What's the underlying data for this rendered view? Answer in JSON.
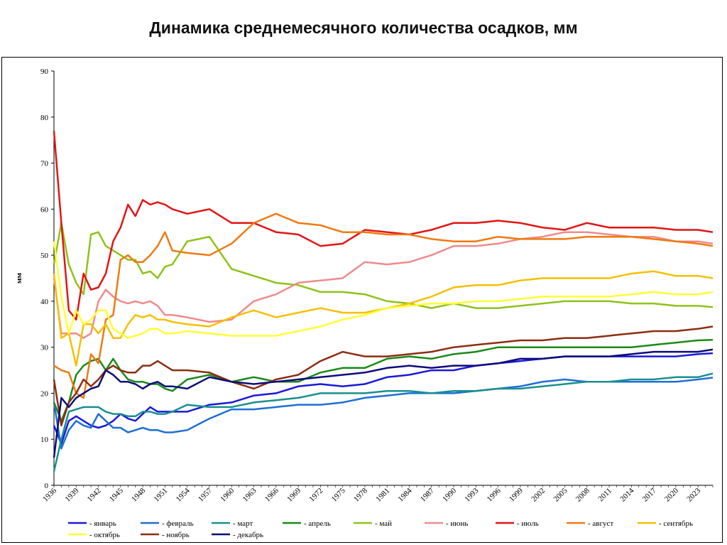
{
  "chart_data": {
    "type": "line",
    "title": "Динамика среднемесячного количества осадков, мм",
    "xlabel": "",
    "ylabel": "мм",
    "ylim": [
      0,
      90
    ],
    "yticks": [
      0,
      10,
      20,
      30,
      40,
      50,
      60,
      70,
      80,
      90
    ],
    "xlim": [
      1936,
      2025
    ],
    "xticks": [
      "1936",
      "1939",
      "1942",
      "1945",
      "1948",
      "1951",
      "1954",
      "1957",
      "1960",
      "1963",
      "1966",
      "1969",
      "1972",
      "1975",
      "1978",
      "1981",
      "1984",
      "1987",
      "1990",
      "1993",
      "1996",
      "1999",
      "2002",
      "2005",
      "2008",
      "2011",
      "2014",
      "2017",
      "2020",
      "2023"
    ],
    "grid": false,
    "legend": "bottom",
    "sample_years": [
      1936,
      1937,
      1938,
      1939,
      1940,
      1941,
      1942,
      1943,
      1944,
      1945,
      1946,
      1947,
      1948,
      1949,
      1950,
      1951,
      1952,
      1954,
      1957,
      1960,
      1963,
      1966,
      1969,
      1972,
      1975,
      1978,
      1981,
      1984,
      1987,
      1990,
      1993,
      1996,
      1999,
      2002,
      2005,
      2008,
      2011,
      2014,
      2017,
      2020,
      2023,
      2025
    ],
    "series": [
      {
        "name": "январь",
        "color": "#1a1ad9",
        "values": [
          13,
          9,
          14,
          15,
          14,
          13,
          12.5,
          13,
          14,
          15.5,
          14.5,
          14,
          15.5,
          17,
          16,
          16,
          16,
          16,
          17.5,
          18,
          19.5,
          20,
          21.5,
          22,
          21.5,
          22,
          23.5,
          24,
          25,
          25,
          26,
          26.5,
          27,
          27.5,
          28,
          28,
          28,
          28,
          28,
          28,
          28.5,
          28.7
        ]
      },
      {
        "name": "февраль",
        "color": "#1e6fd6",
        "values": [
          18,
          8,
          12,
          14,
          13,
          12.5,
          15.5,
          14,
          12.5,
          12.5,
          11.5,
          12,
          12.5,
          12,
          12,
          11.5,
          11.5,
          12,
          14.5,
          16.5,
          16.5,
          17,
          17.5,
          17.5,
          18,
          19,
          19.5,
          20,
          20,
          20,
          20.5,
          21,
          21.5,
          22.5,
          23,
          22.5,
          22.5,
          22.5,
          22.5,
          22.5,
          23,
          23.4
        ]
      },
      {
        "name": "март",
        "color": "#1a8f8f",
        "values": [
          3,
          10,
          16,
          16.5,
          17,
          17,
          17,
          16,
          15.5,
          15.5,
          15,
          15,
          16,
          16,
          15.5,
          15.5,
          16,
          17.5,
          17,
          17,
          18,
          18.5,
          19,
          20,
          20,
          20,
          20.5,
          20.5,
          20,
          20.5,
          20.5,
          21,
          21,
          21.5,
          22,
          22.5,
          22.5,
          23,
          23,
          23.5,
          23.5,
          24.3
        ]
      },
      {
        "name": "апрель",
        "color": "#1a8a1a",
        "values": [
          18,
          14,
          18,
          24,
          26,
          27,
          27.5,
          25,
          27.5,
          25,
          23,
          22.5,
          22.5,
          22,
          22,
          21,
          20.5,
          23,
          24,
          22.5,
          23.5,
          22.5,
          22.5,
          24.5,
          25.5,
          25.5,
          27.5,
          28,
          27.5,
          28.5,
          29,
          30,
          30,
          30,
          30,
          30,
          30,
          30,
          30.5,
          31,
          31.5,
          31.6
        ]
      },
      {
        "name": "май",
        "color": "#8fc21a",
        "values": [
          48,
          57,
          48,
          44,
          41.5,
          54.5,
          55,
          52,
          51,
          50,
          49,
          49,
          46,
          46.5,
          45,
          47.5,
          48,
          53,
          54,
          47,
          45.5,
          44,
          43.5,
          42,
          42,
          41.5,
          40,
          39.5,
          38.5,
          39.5,
          38.5,
          38.5,
          39,
          39.5,
          40,
          40,
          40,
          39.5,
          39.5,
          39,
          39,
          38.7
        ]
      },
      {
        "name": "июнь",
        "color": "#f08a8a",
        "values": [
          45,
          33,
          33,
          33,
          32,
          33,
          40,
          42.5,
          41,
          40,
          39.5,
          40,
          39.5,
          40,
          39,
          37,
          37,
          36.5,
          35.5,
          36,
          40,
          41.5,
          44,
          44.5,
          45,
          48.5,
          48,
          48.5,
          50,
          52,
          52,
          52.5,
          53.5,
          54,
          55,
          55,
          54.5,
          54,
          54,
          53,
          53,
          52.5
        ]
      },
      {
        "name": "июль",
        "color": "#e21515",
        "values": [
          77,
          57,
          38,
          36,
          46,
          42.5,
          43,
          46,
          53,
          56,
          61,
          58.5,
          62,
          61,
          61.5,
          61,
          60,
          59,
          60,
          57,
          57,
          55,
          54.5,
          52,
          52.5,
          55.5,
          55,
          54.5,
          55.5,
          57,
          57,
          57.5,
          57,
          56,
          55.5,
          57,
          56,
          56,
          56,
          55.5,
          55.5,
          55
        ]
      },
      {
        "name": "август",
        "color": "#f07a10",
        "values": [
          26,
          25,
          24.5,
          20,
          19,
          28.5,
          26.5,
          36,
          37,
          49,
          50,
          48.5,
          48.5,
          50,
          52,
          55,
          51,
          50.5,
          50,
          52.5,
          57,
          59,
          57,
          56.5,
          55,
          55,
          54.5,
          54.5,
          53.5,
          53,
          53,
          54,
          53.5,
          53.5,
          53.5,
          54,
          54,
          54,
          53.5,
          53,
          52.5,
          52
        ]
      },
      {
        "name": "сентябрь",
        "color": "#f5c000",
        "values": [
          46,
          32,
          33,
          26,
          35,
          35,
          33,
          35,
          32,
          32,
          35,
          37,
          36.5,
          37,
          36,
          36,
          35.5,
          35,
          34.5,
          36.5,
          38,
          36.5,
          37.5,
          38.5,
          37.5,
          37.5,
          38.5,
          39.5,
          41,
          43,
          43.5,
          43.5,
          44.5,
          45,
          45,
          45,
          45,
          46,
          46.5,
          45.5,
          45.5,
          45
        ]
      },
      {
        "name": "октябрь",
        "color": "#ffff33",
        "values": [
          53,
          41,
          33,
          38,
          35,
          36,
          38,
          38,
          34,
          33,
          32,
          32.5,
          33,
          34,
          34,
          33,
          33,
          33.5,
          33,
          32.5,
          32.5,
          32.5,
          33.5,
          34.5,
          36,
          37,
          38.5,
          39,
          39.5,
          39.5,
          40,
          40,
          40.5,
          41,
          41,
          41,
          41,
          41.5,
          42,
          41.5,
          41.5,
          42
        ]
      },
      {
        "name": "ноябрь",
        "color": "#8b2e12",
        "values": [
          23,
          13,
          18,
          20,
          23,
          21.5,
          23,
          25,
          26,
          25,
          24.5,
          24.5,
          26,
          26,
          27,
          26,
          25,
          25,
          24.5,
          22.5,
          21,
          23,
          24,
          27,
          29,
          28,
          28,
          28.5,
          29,
          30,
          30.5,
          31,
          31.5,
          31.5,
          32,
          32,
          32.5,
          33,
          33.5,
          33.5,
          34,
          34.5
        ]
      },
      {
        "name": "декабрь",
        "color": "#0d0d7a",
        "values": [
          6,
          19,
          17,
          19,
          20,
          21,
          21.5,
          25,
          24,
          22.5,
          22.5,
          22,
          21,
          22,
          22.5,
          21.5,
          21.5,
          21,
          23.5,
          22.5,
          22,
          22.5,
          23,
          23.5,
          24,
          24.5,
          25.5,
          26,
          25.5,
          26,
          26,
          26.5,
          27.5,
          27.5,
          28,
          28,
          28,
          28.5,
          29,
          29,
          29,
          29.5
        ]
      }
    ]
  },
  "legend_prefix": "- "
}
